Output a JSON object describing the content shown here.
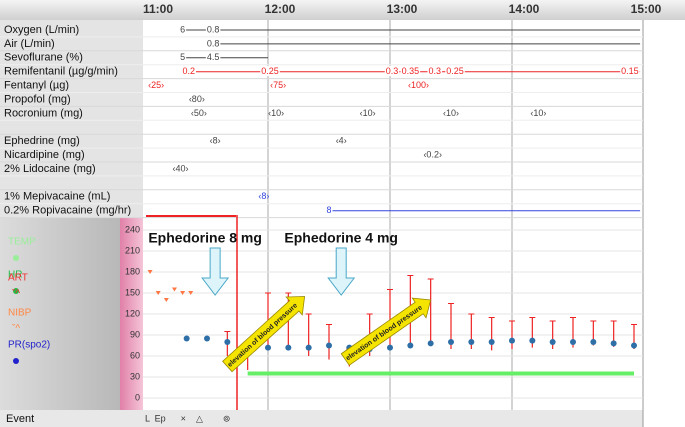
{
  "time_axis": {
    "labels": [
      "11:00",
      "12:00",
      "13:00",
      "14:00",
      "15:00"
    ],
    "minutes": [
      0,
      60,
      120,
      180,
      240
    ]
  },
  "drug_rows": [
    {
      "label": "Oxygen (L/min)",
      "color": "#444444",
      "line": [
        18,
        243
      ],
      "marks": [
        {
          "t": 18,
          "text": "6"
        },
        {
          "t": 33,
          "text": "0.8"
        }
      ]
    },
    {
      "label": "Air (L/min)",
      "color": "#444444",
      "line": [
        33,
        243
      ],
      "marks": [
        {
          "t": 33,
          "text": "0.8"
        }
      ]
    },
    {
      "label": "Sevoflurane  (%)",
      "color": "#444444",
      "line": [
        18,
        60
      ],
      "marks": [
        {
          "t": 18,
          "text": "5"
        },
        {
          "t": 33,
          "text": "4.5"
        }
      ]
    },
    {
      "label": "Remifentanil  (µg/g/min)",
      "color": "#ee2222",
      "line": [
        21,
        243
      ],
      "marks": [
        {
          "t": 21,
          "text": "0.2"
        },
        {
          "t": 61,
          "text": "0.25"
        },
        {
          "t": 121,
          "text": "0.3"
        },
        {
          "t": 130,
          "text": "0.35"
        },
        {
          "t": 142,
          "text": "0.3"
        },
        {
          "t": 152,
          "text": "0.25"
        },
        {
          "t": 238,
          "text": "0.15"
        }
      ]
    },
    {
      "label": "Fentanyl  (µg)",
      "color": "#ee2222",
      "marks": [
        {
          "t": 5,
          "text": "‹25›"
        },
        {
          "t": 65,
          "text": "‹75›"
        },
        {
          "t": 134,
          "text": "‹100›"
        }
      ]
    },
    {
      "label": "Propofol  (mg)",
      "color": "#444444",
      "marks": [
        {
          "t": 25,
          "text": "‹80›"
        }
      ]
    },
    {
      "label": "Rocronium  (mg)",
      "color": "#444444",
      "marks": [
        {
          "t": 26,
          "text": "‹50›"
        },
        {
          "t": 64,
          "text": "‹10›"
        },
        {
          "t": 109,
          "text": "‹10›"
        },
        {
          "t": 150,
          "text": "‹10›"
        },
        {
          "t": 193,
          "text": "‹10›"
        }
      ]
    },
    {
      "label": "Ephedrine  (mg)",
      "color": "#444444",
      "marks": [
        {
          "t": 34,
          "text": "‹8›"
        },
        {
          "t": 96,
          "text": "‹4›"
        }
      ]
    },
    {
      "label": "Nicardipine (mg)",
      "color": "#444444",
      "marks": [
        {
          "t": 141,
          "text": "‹0.2›"
        }
      ]
    },
    {
      "label": "2%  Lidocaine (mg)",
      "color": "#444444",
      "marks": [
        {
          "t": 17,
          "text": "‹40›"
        }
      ]
    },
    {
      "label": "1% Mepivacaine (mL)",
      "color": "#3344dd",
      "marks": [
        {
          "t": 58,
          "text": "‹8›"
        }
      ]
    },
    {
      "label": "0.2% Ropivacaine (mg/hr)",
      "color": "#3344dd",
      "line": [
        90,
        243
      ],
      "marks": [
        {
          "t": 90,
          "text": "8"
        }
      ]
    }
  ],
  "vitals": {
    "legend": [
      {
        "text": "TEMP",
        "color": "#99ee99"
      },
      {
        "text": "HR",
        "color": "#22bb44"
      },
      {
        "text": "ART",
        "color": "#ee3333"
      },
      {
        "text": "NIBP",
        "color": "#ff8844"
      },
      {
        "text": "PR(spo2)",
        "color": "#2222cc"
      }
    ],
    "ylim": [
      0,
      240
    ],
    "yticks": [
      0,
      30,
      60,
      90,
      120,
      150,
      180,
      210,
      240
    ],
    "minutes": [
      20,
      30,
      40,
      50,
      60,
      70,
      80,
      90,
      100,
      110,
      120,
      130,
      140,
      150,
      160,
      170,
      180,
      190,
      200,
      210,
      220,
      230,
      240
    ],
    "art_sys": [
      null,
      null,
      95,
      70,
      150,
      150,
      120,
      105,
      70,
      120,
      155,
      175,
      170,
      135,
      120,
      115,
      110,
      115,
      110,
      115,
      110,
      110,
      105
    ],
    "art_dia": [
      null,
      null,
      60,
      40,
      75,
      70,
      60,
      55,
      45,
      60,
      70,
      75,
      75,
      70,
      70,
      68,
      70,
      72,
      70,
      72,
      75,
      73,
      70
    ],
    "hr": [
      85,
      85,
      80,
      65,
      72,
      72,
      72,
      75,
      72,
      70,
      72,
      75,
      78,
      80,
      80,
      80,
      82,
      82,
      80,
      80,
      80,
      78,
      75
    ],
    "nibp_minutes": [
      2,
      6,
      10,
      14,
      18,
      22
    ],
    "nibp": [
      180,
      150,
      140,
      155,
      150,
      150
    ],
    "spo2_minutes": [
      50,
      240
    ],
    "spo2": [
      35,
      35
    ],
    "annotations": [
      {
        "text": "Ephedorine 8 mg",
        "t": 34
      },
      {
        "text": "Ephedorine 4 mg",
        "t": 96
      }
    ],
    "arrows": [
      {
        "text": "elevation of blood pressure",
        "t0": 40,
        "t1": 78,
        "v0": 45,
        "v1": 145
      },
      {
        "text": "elevation of blood pressure",
        "t0": 98,
        "t1": 140,
        "v0": 55,
        "v1": 140
      }
    ]
  },
  "event": {
    "label": "Event",
    "symbols": "L  Ep      ×    △        ⊚"
  }
}
